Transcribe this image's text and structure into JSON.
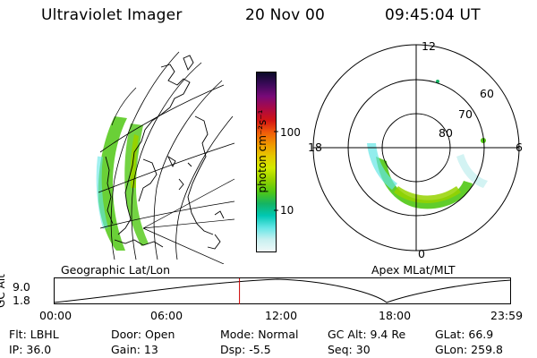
{
  "header": {
    "title": "Ultraviolet Imager",
    "date": "20 Nov 00",
    "time": "09:45:04 UT"
  },
  "colorbar": {
    "unit_label": "photon cm⁻²s⁻¹",
    "ticks": [
      "100",
      "10"
    ],
    "colors": [
      "#0a0a28",
      "#3c0a5a",
      "#780a78",
      "#aa0a46",
      "#d21414",
      "#f05a0a",
      "#f09600",
      "#e6c800",
      "#d2eb00",
      "#96d200",
      "#50c814",
      "#14b464",
      "#00c8b4",
      "#64e6e6",
      "#c8f0f0",
      "#f0f8f8"
    ]
  },
  "polar_plot": {
    "lat_labels": [
      "60",
      "70",
      "80"
    ],
    "mlt_labels": {
      "top": "12",
      "left": "18",
      "right": "6",
      "bottom": "0"
    }
  },
  "altitude_panel": {
    "ylabel": "GC Alt",
    "y_ticks": [
      "9.0",
      "1.8"
    ],
    "left_title": "Geographic Lat/Lon",
    "right_title": "Apex MLat/MLT",
    "x_ticks": [
      "00:00",
      "06:00",
      "12:00",
      "18:00",
      "23:59"
    ],
    "current_time_hours": 9.75,
    "marker_color": "#cc0000"
  },
  "info": {
    "flt": "Flt: LBHL",
    "ip": "IP: 36.0",
    "door": "Door: Open",
    "gain": "Gain: 13",
    "mode": "Mode: Normal",
    "dsp": "Dsp:    -5.5",
    "gc_alt": "GC Alt: 9.4 Re",
    "seq": "Seq: 30",
    "glat": "GLat:  66.9",
    "glon": "GLon: 259.8"
  }
}
